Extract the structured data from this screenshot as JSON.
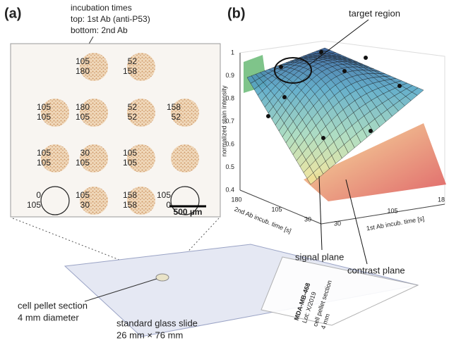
{
  "panel_a": {
    "label": "(a)",
    "caption": [
      "incubation times",
      "top: 1st Ab (anti-P53)",
      "bottom: 2nd Ab"
    ],
    "spots": [
      {
        "top": "105",
        "bottom": "180"
      },
      {
        "top": "52",
        "bottom": "158"
      },
      {
        "top": "105",
        "bottom": "105"
      },
      {
        "top": "180",
        "bottom": "105"
      },
      {
        "top": "52",
        "bottom": "52"
      },
      {
        "top": "158",
        "bottom": "52"
      },
      {
        "top": "105",
        "bottom": "105"
      },
      {
        "top": "30",
        "bottom": "105"
      },
      {
        "top": "105",
        "bottom": "105"
      },
      {
        "top": "0",
        "bottom": "105"
      },
      {
        "top": "105",
        "bottom": "30"
      },
      {
        "top": "158",
        "bottom": "158"
      },
      {
        "top": "105",
        "bottom": "0"
      }
    ],
    "scale_bar": "500 µm",
    "pellet_caption": [
      "cell pellet section",
      "4 mm diameter"
    ],
    "slide_caption": [
      "standard glass slide",
      "26 mm × 76 mm"
    ],
    "slide_sticker": [
      "MDA-MB-468",
      "Lot: X/2019",
      "cell pellet section",
      "4 mm"
    ]
  },
  "panel_b": {
    "label": "(b)",
    "z_axis": {
      "label": "normalized stain intensity",
      "ticks": [
        "0.4",
        "0.5",
        "0.6",
        "0.7",
        "0.8",
        "0.9",
        "1"
      ]
    },
    "second_ab_axis": {
      "label": "2nd Ab incub. time [s]",
      "ticks": [
        "180",
        "105",
        "30"
      ]
    },
    "first_ab_axis": {
      "label": "1st Ab incub. time [s]",
      "ticks": [
        "30",
        "105",
        "18"
      ]
    },
    "annotations": [
      "target region",
      "signal plane",
      "contrast plane"
    ]
  }
}
